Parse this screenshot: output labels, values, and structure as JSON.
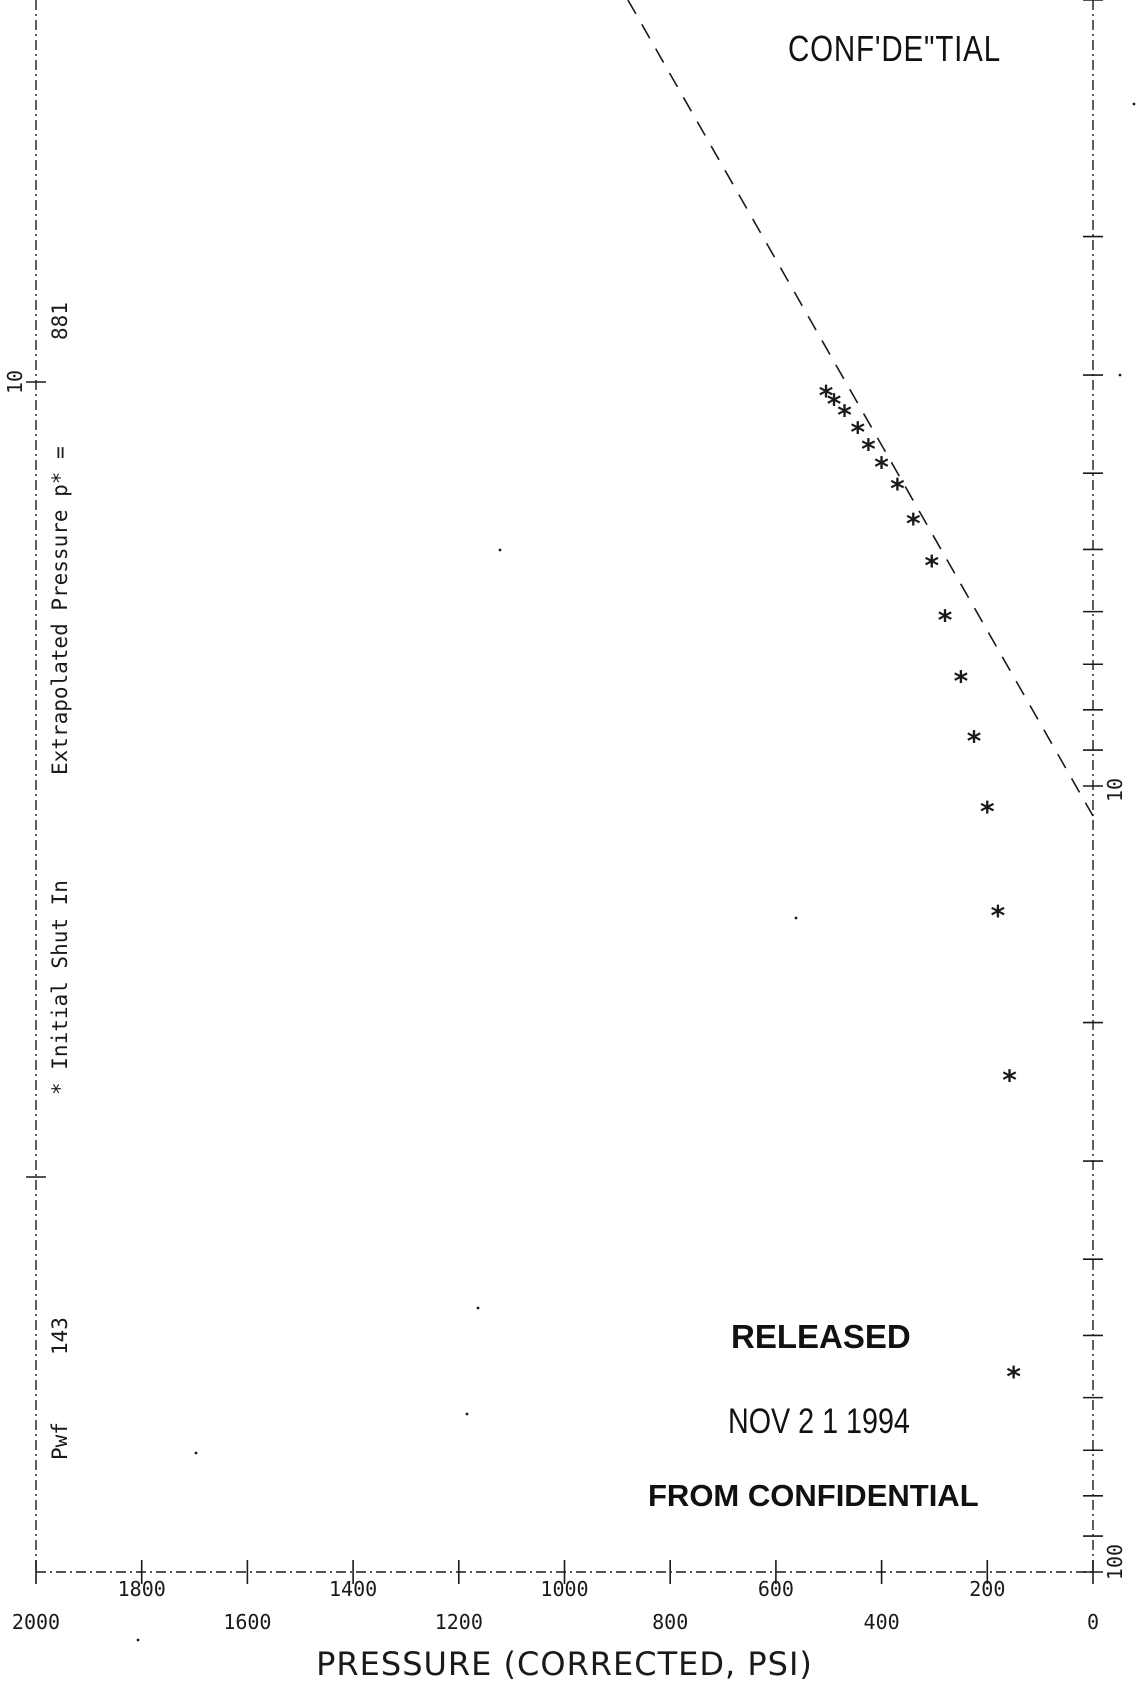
{
  "chart_data": {
    "type": "scatter",
    "title": "",
    "xlabel": "PRESSURE   (CORRECTED, PSI)",
    "ylabel": "",
    "x_scale": "reversed-linear",
    "xlim": [
      2000,
      0
    ],
    "y_scale": "log",
    "ylim": [
      100,
      1
    ],
    "x_major_ticks": [
      "2000",
      "1600",
      "1200",
      "800",
      "400",
      "0"
    ],
    "x_minor_ticks": [
      "1800",
      "1400",
      "1000",
      "600",
      "200"
    ],
    "y_tick_labels": [
      "10",
      "10",
      "100"
    ],
    "grid": false,
    "legend": "none",
    "annotations": {
      "initial_shut_in": "* Initial Shut In",
      "extrapolated_label": "Extrapolated Pressure p* =",
      "extrapolated_value": "881",
      "pwf_label": "Pwf",
      "pwf_value": "143"
    },
    "series": [
      {
        "marker": "*",
        "points": [
          {
            "x": 505,
            "y": 3.16
          },
          {
            "x": 490,
            "y": 3.24
          },
          {
            "x": 470,
            "y": 3.35
          },
          {
            "x": 445,
            "y": 3.52
          },
          {
            "x": 425,
            "y": 3.7
          },
          {
            "x": 400,
            "y": 3.9
          },
          {
            "x": 370,
            "y": 4.15
          },
          {
            "x": 340,
            "y": 4.6
          },
          {
            "x": 305,
            "y": 5.2
          },
          {
            "x": 280,
            "y": 6.1
          },
          {
            "x": 250,
            "y": 7.3
          },
          {
            "x": 225,
            "y": 8.7
          },
          {
            "x": 200,
            "y": 10.7
          },
          {
            "x": 180,
            "y": 14.5
          },
          {
            "x": 158,
            "y": 23.5
          },
          {
            "x": 150,
            "y": 56
          }
        ]
      }
    ],
    "trend_line": [
      {
        "x": 880,
        "y": 1.0
      },
      {
        "x": 0,
        "y": 10.0
      }
    ]
  },
  "stamps": {
    "confidential": "CONF'DE\"TIAL",
    "released": "RELEASED",
    "date": "NOV 2 1 1994",
    "from_confidential": "FROM CONFIDENTIAL"
  },
  "colors": {
    "ink": "#1a1a1a"
  }
}
